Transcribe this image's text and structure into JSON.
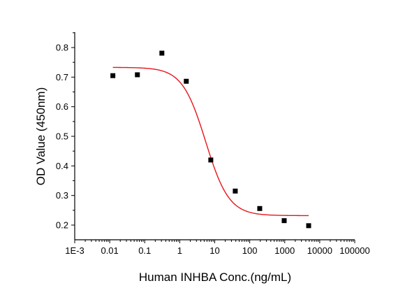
{
  "chart_data": {
    "type": "scatter",
    "title": "",
    "xlabel": "Human INHBA Conc.(ng/mL)",
    "ylabel": "OD Value (450nm)",
    "x_scale": "log",
    "xlim": [
      0.001,
      100000
    ],
    "ylim": [
      0.15,
      0.85
    ],
    "x_ticks": [
      0.001,
      0.01,
      0.1,
      1,
      10,
      100,
      1000,
      10000,
      100000
    ],
    "x_tick_labels": [
      "1E-3",
      "0.01",
      "0.1",
      "1",
      "10",
      "100",
      "1000",
      "10000",
      "100000"
    ],
    "y_ticks": [
      0.2,
      0.3,
      0.4,
      0.5,
      0.6,
      0.7,
      0.8
    ],
    "y_tick_labels": [
      "0.2",
      "0.3",
      "0.4",
      "0.5",
      "0.6",
      "0.7",
      "0.8"
    ],
    "grid": false,
    "legend": "none",
    "series": [
      {
        "type": "scatter",
        "marker": "square",
        "color": "#000000",
        "x": [
          0.0123,
          0.0617,
          0.309,
          1.54,
          7.72,
          38.6,
          193,
          965,
          4823
        ],
        "y": [
          0.705,
          0.708,
          0.781,
          0.686,
          0.42,
          0.315,
          0.256,
          0.215,
          0.198
        ]
      },
      {
        "type": "line",
        "color": "#e8151b",
        "curve": "four-parameter logistic fit",
        "top": 0.733,
        "bottom": 0.232,
        "ec50": 5.5,
        "hill_slope": 1.3,
        "x_range": [
          0.0123,
          4823
        ]
      }
    ]
  }
}
